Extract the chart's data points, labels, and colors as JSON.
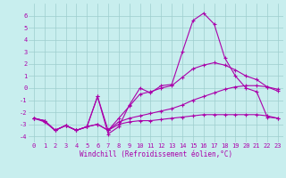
{
  "xlabel": "Windchill (Refroidissement éolien,°C)",
  "background_color": "#c8eeee",
  "grid_color": "#9ecece",
  "line_color": "#aa00aa",
  "x_hours": [
    0,
    1,
    2,
    3,
    4,
    5,
    6,
    7,
    8,
    9,
    10,
    11,
    12,
    13,
    14,
    15,
    16,
    17,
    18,
    19,
    20,
    21,
    22,
    23
  ],
  "line1_y": [
    -2.5,
    -2.7,
    -3.5,
    -3.1,
    -3.5,
    -3.2,
    -0.7,
    -3.8,
    -3.2,
    -1.4,
    0.0,
    -0.4,
    0.2,
    0.3,
    3.0,
    5.6,
    6.2,
    5.3,
    2.5,
    1.0,
    0.0,
    -0.3,
    -2.4,
    -2.5
  ],
  "line2_y": [
    -2.5,
    -2.7,
    -3.5,
    -3.1,
    -3.5,
    -3.2,
    -0.7,
    -3.5,
    -2.5,
    -1.5,
    -0.5,
    -0.3,
    0.0,
    0.2,
    0.9,
    1.6,
    1.9,
    2.1,
    1.9,
    1.5,
    1.0,
    0.7,
    0.1,
    -0.25
  ],
  "line3_y": [
    -2.5,
    -2.7,
    -3.5,
    -3.1,
    -3.5,
    -3.2,
    -3.0,
    -3.5,
    -2.8,
    -2.5,
    -2.3,
    -2.1,
    -1.9,
    -1.7,
    -1.4,
    -1.0,
    -0.7,
    -0.4,
    -0.1,
    0.1,
    0.2,
    0.2,
    0.1,
    -0.1
  ],
  "line4_y": [
    -2.5,
    -2.8,
    -3.5,
    -3.1,
    -3.5,
    -3.2,
    -3.0,
    -3.5,
    -3.0,
    -2.8,
    -2.7,
    -2.7,
    -2.6,
    -2.5,
    -2.4,
    -2.3,
    -2.2,
    -2.2,
    -2.2,
    -2.2,
    -2.2,
    -2.2,
    -2.3,
    -2.5
  ],
  "ylim": [
    -4.5,
    7.0
  ],
  "xlim": [
    -0.5,
    23.5
  ],
  "yticks": [
    -4,
    -3,
    -2,
    -1,
    0,
    1,
    2,
    3,
    4,
    5,
    6
  ],
  "xticks": [
    0,
    1,
    2,
    3,
    4,
    5,
    6,
    7,
    8,
    9,
    10,
    11,
    12,
    13,
    14,
    15,
    16,
    17,
    18,
    19,
    20,
    21,
    22,
    23
  ],
  "tick_fontsize": 5.0,
  "xlabel_fontsize": 5.5,
  "marker_size": 3.0,
  "line_width": 0.8
}
